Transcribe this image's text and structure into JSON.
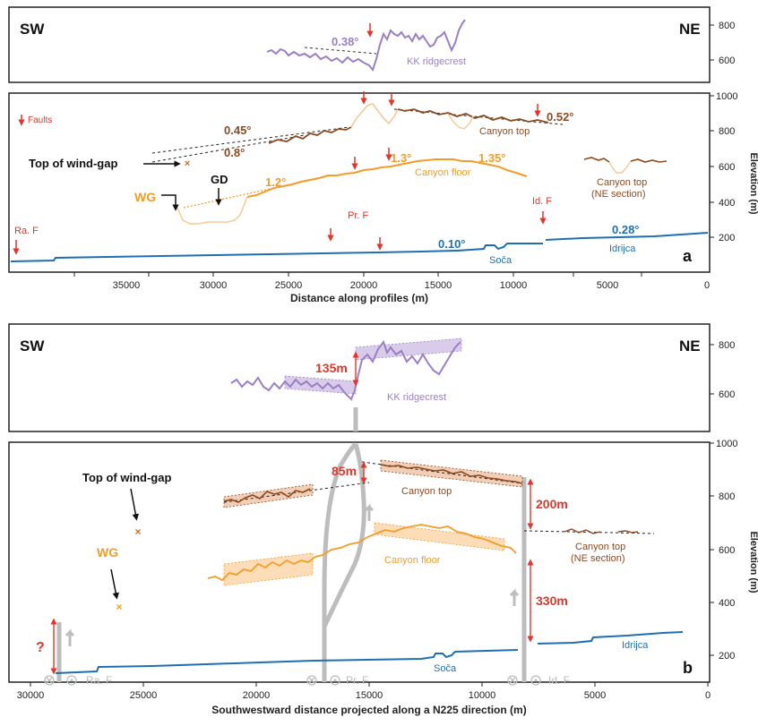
{
  "figure": {
    "panel_a": {
      "label": "a",
      "direction_left": "SW",
      "direction_right": "NE",
      "ridge_label": "KK ridgecrest",
      "ridge_slope": "0.38°",
      "faults_legend": "Faults",
      "fault_labels": {
        "ra": "Ra. F",
        "pr": "Pr. F",
        "id": "Id. F"
      },
      "canyon_top_label": "Canyon top",
      "canyon_top_ne_label": [
        "Canyon top",
        "(NE section)"
      ],
      "canyon_floor_label": "Canyon floor",
      "soca_label": "Soča",
      "idrijca_label": "Idrijca",
      "windgap_label": "Top of wind-gap",
      "wg_label": "WG",
      "gd_label": "GD",
      "slopes": {
        "top_a": "0.45°",
        "top_b": "0.8°",
        "top_ne": "0.52°",
        "floor_a": "1.2°",
        "floor_b": "1.3°",
        "floor_c": "1.35°",
        "soca": "0.10°",
        "idrijca": "0.28°"
      },
      "x_axis_label": "Distance along profiles (m)",
      "x_ticks": [
        "35000",
        "30000",
        "25000",
        "20000",
        "15000",
        "10000",
        "5000",
        "0"
      ],
      "y_top_ticks": [
        "800",
        "600"
      ],
      "y_bottom_ticks": [
        "1000",
        "800",
        "600",
        "400",
        "200"
      ],
      "y_axis_label": "Elevation (m)"
    },
    "panel_b": {
      "label": "b",
      "direction_left": "SW",
      "direction_right": "NE",
      "ridge_label": "KK ridgecrest",
      "offset_ridge": "135m",
      "offset_top": "85m",
      "offset_200": "200m",
      "offset_330": "330m",
      "offset_unknown": "?",
      "canyon_top_label": "Canyon top",
      "canyon_top_ne_label": [
        "Canyon top",
        "(NE section)"
      ],
      "canyon_floor_label": "Canyon floor",
      "soca_label": "Soča",
      "idrijca_label": "Idrijca",
      "windgap_label": "Top of wind-gap",
      "wg_label": "WG",
      "fault_labels": {
        "ra": "Ra. F",
        "pr": "Pr. F",
        "id": "Id. F"
      },
      "x_axis_label": "Southwestward distance projected along a N225 direction (m)",
      "x_ticks": [
        "30000",
        "25000",
        "20000",
        "15000",
        "10000",
        "5000",
        "0"
      ],
      "y_top_ticks": [
        "800",
        "600"
      ],
      "y_bottom_ticks": [
        "1000",
        "800",
        "600",
        "400",
        "200"
      ],
      "y_axis_label": "Elevation (m)"
    },
    "colors": {
      "ridge": "#9b7fc4",
      "canyon_top": "#8b4a1f",
      "canyon_floor": "#f39c2a",
      "river": "#1f6fb0",
      "fault": "#e0362c",
      "fault_trace": "#bdbdbd",
      "wind_gap": "#c8702a"
    }
  }
}
